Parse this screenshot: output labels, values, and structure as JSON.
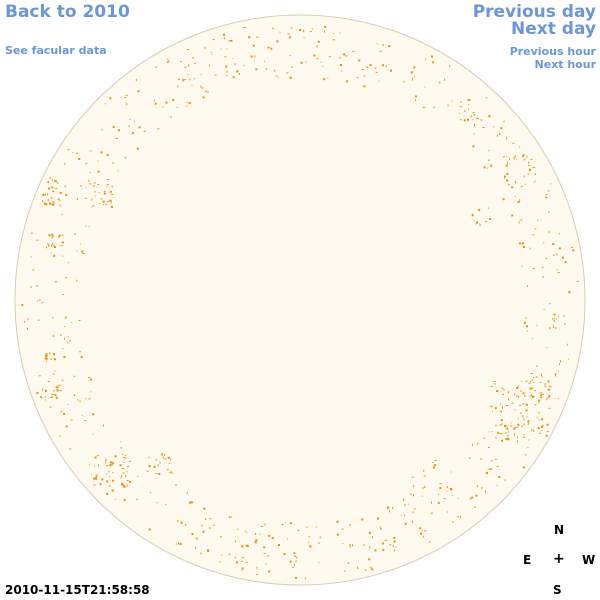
{
  "nav": {
    "back": "Back to 2010",
    "facular": "See facular data",
    "prev_day": "Previous day",
    "next_day": "Next day",
    "prev_hour": "Previous hour",
    "next_hour": "Next hour"
  },
  "compass": {
    "north": "N",
    "east": "E",
    "center": "+",
    "west": "W",
    "south": "S"
  },
  "timestamp": "2010-11-15T21:58:58",
  "colors": {
    "disk_fill": "#fffaf0",
    "disk_border": "#d8ccb4",
    "facula": "#e8900c",
    "link": "#6b96d8"
  }
}
